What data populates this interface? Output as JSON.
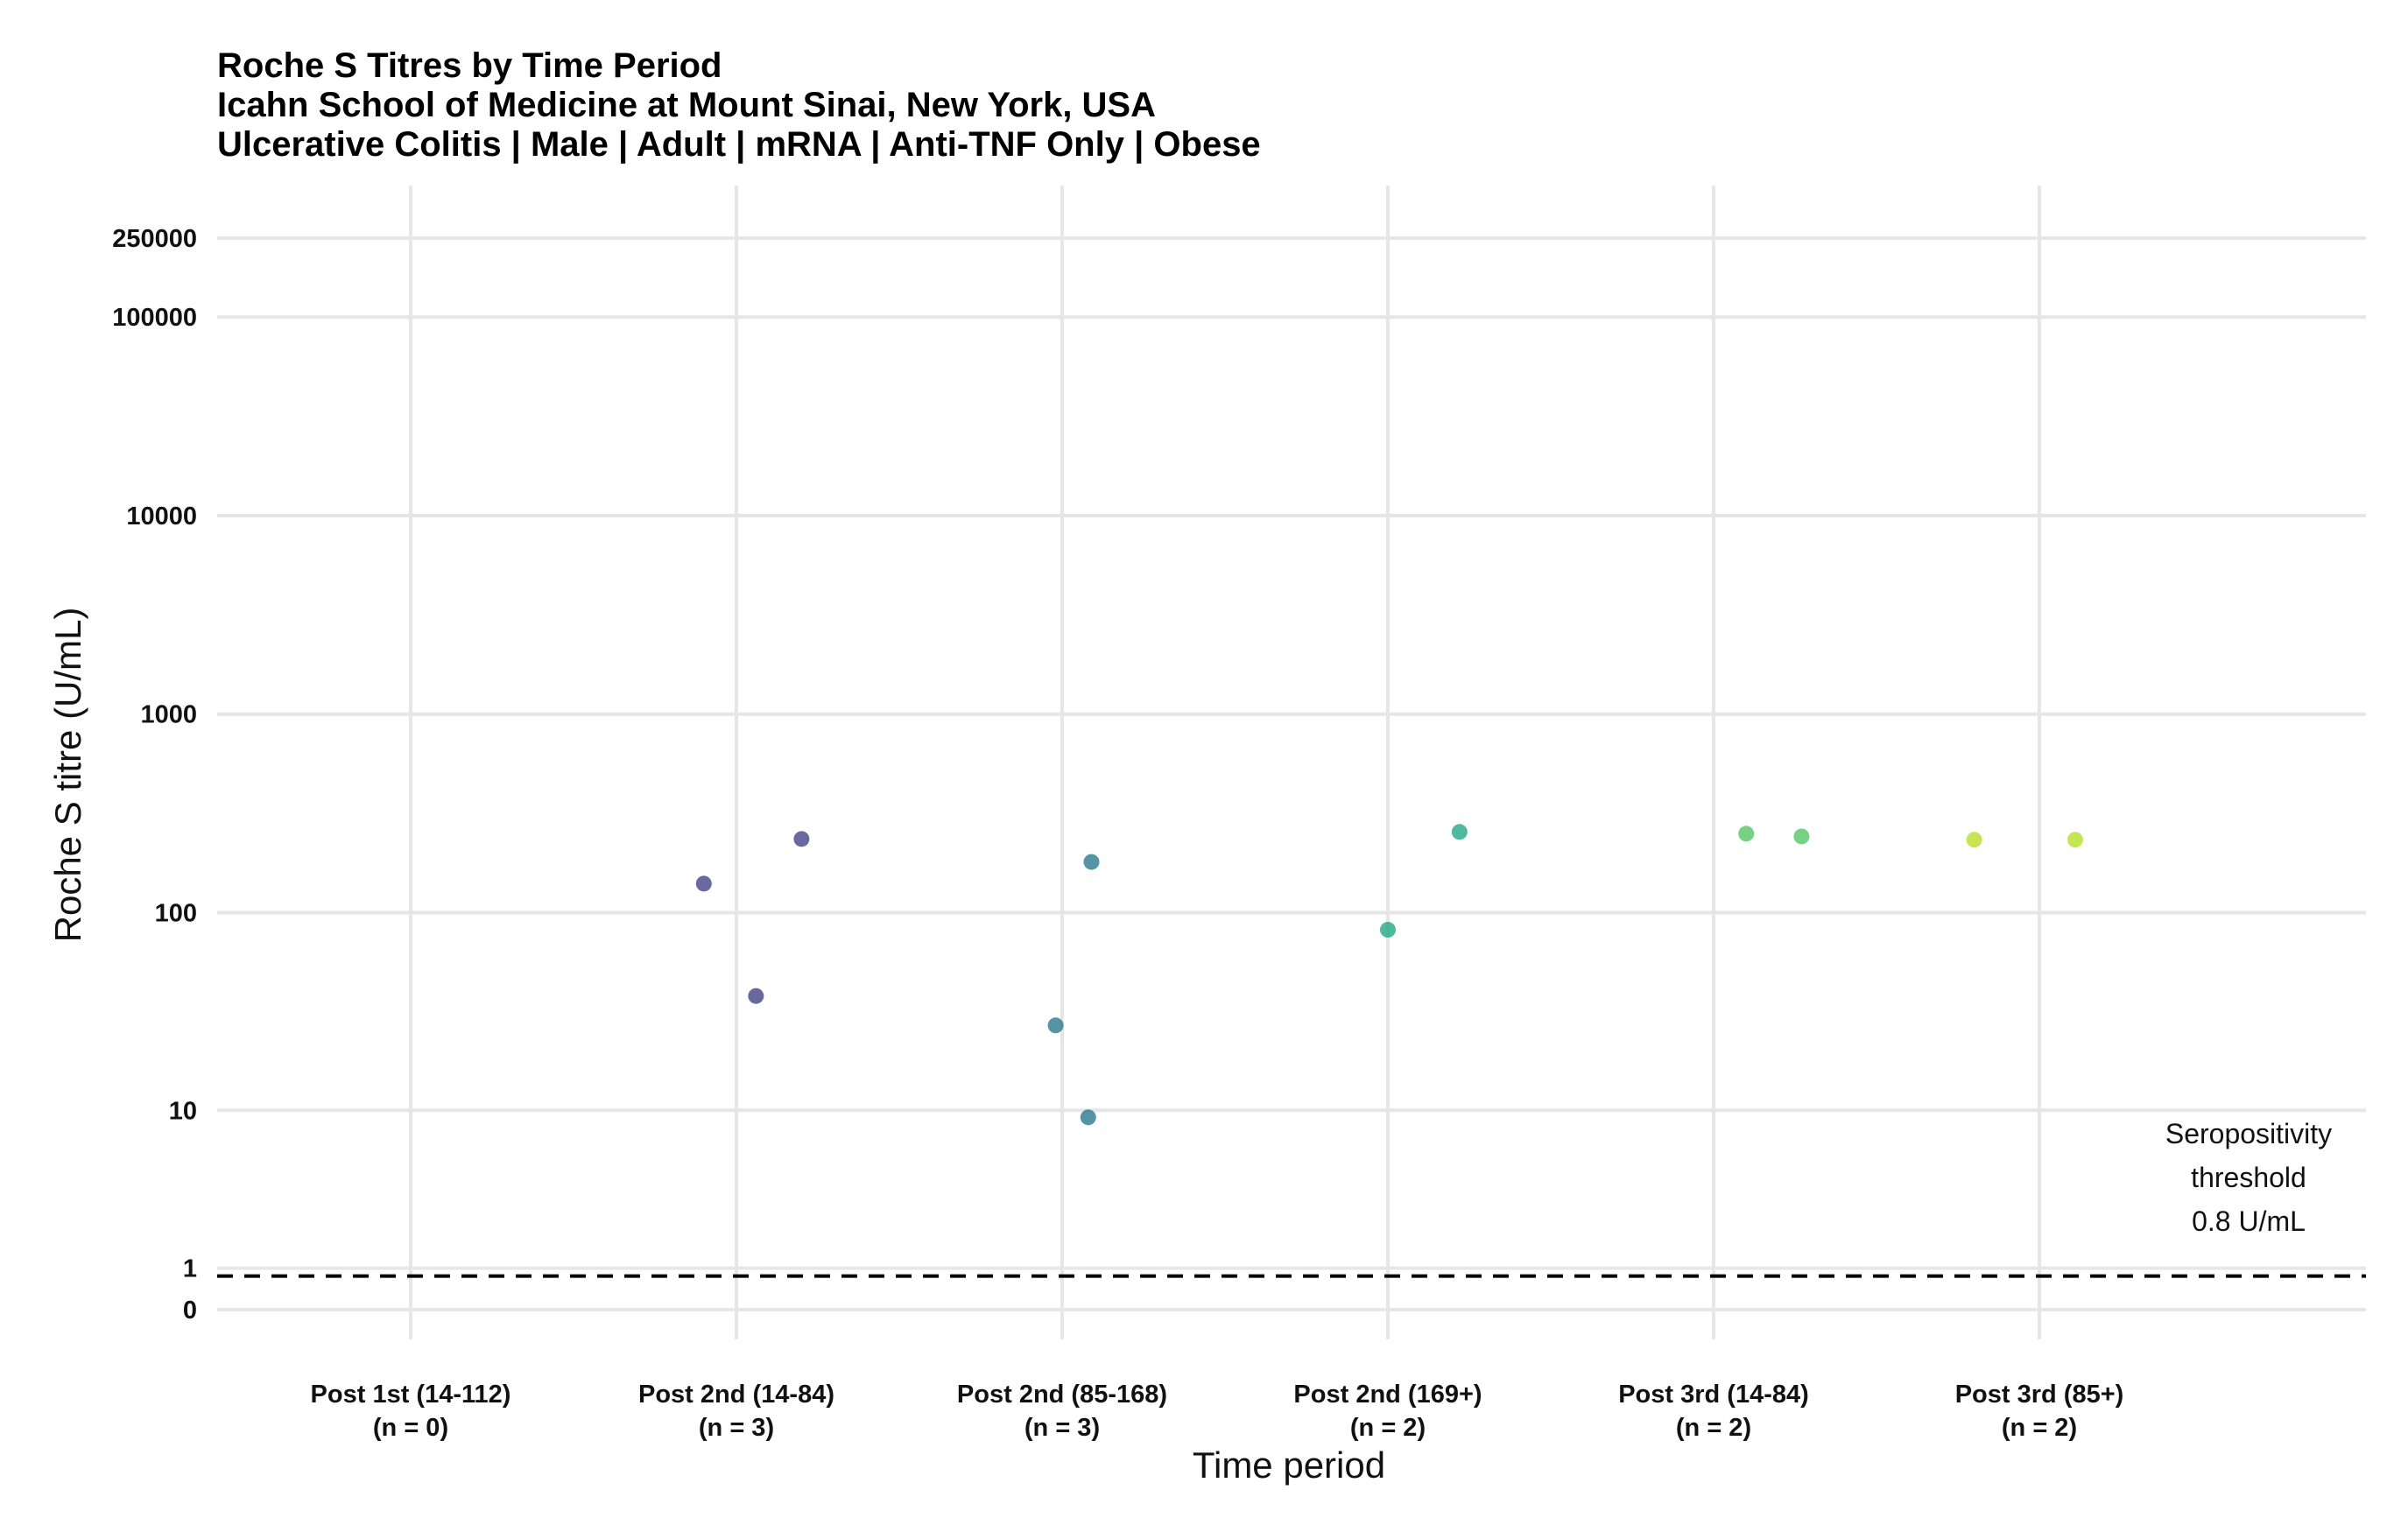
{
  "chart_data": {
    "type": "scatter",
    "title": "Roche S Titres by Time Period",
    "subtitle_lines": [
      "Icahn School of Medicine at Mount Sinai, New York, USA",
      "Ulcerative Colitis | Male | Adult | mRNA | Anti-TNF Only | Obese"
    ],
    "xlabel": "Time period",
    "ylabel": "Roche S titre (U/mL)",
    "y_scale": "pseudo-log",
    "yticks": [
      0,
      1,
      10,
      100,
      1000,
      10000,
      100000,
      250000
    ],
    "ytick_labels": [
      "0",
      "1",
      "10",
      "100",
      "1000",
      "10000",
      "100000",
      "250000"
    ],
    "categories": [
      {
        "label": "Post 1st (14-112)",
        "n_label": "(n = 0)",
        "color": "#440154"
      },
      {
        "label": "Post 2nd (14-84)",
        "n_label": "(n = 3)",
        "color": "#414487"
      },
      {
        "label": "Post 2nd (85-168)",
        "n_label": "(n = 3)",
        "color": "#2A788E"
      },
      {
        "label": "Post 2nd (169+)",
        "n_label": "(n = 2)",
        "color": "#22A884"
      },
      {
        "label": "Post 3rd (14-84)",
        "n_label": "(n = 2)",
        "color": "#55C667"
      },
      {
        "label": "Post 3rd (85+)",
        "n_label": "(n = 2)",
        "color": "#B8DE29"
      }
    ],
    "points": [
      {
        "category": 1,
        "jitter": -0.1,
        "y": 140
      },
      {
        "category": 1,
        "jitter": 0.06,
        "y": 38
      },
      {
        "category": 1,
        "jitter": 0.2,
        "y": 235
      },
      {
        "category": 2,
        "jitter": -0.02,
        "y": 27
      },
      {
        "category": 2,
        "jitter": 0.09,
        "y": 180
      },
      {
        "category": 2,
        "jitter": 0.08,
        "y": 9.2
      },
      {
        "category": 3,
        "jitter": 0.0,
        "y": 82
      },
      {
        "category": 3,
        "jitter": 0.22,
        "y": 255
      },
      {
        "category": 4,
        "jitter": 0.1,
        "y": 250
      },
      {
        "category": 4,
        "jitter": 0.27,
        "y": 242
      },
      {
        "category": 5,
        "jitter": -0.2,
        "y": 233
      },
      {
        "category": 5,
        "jitter": 0.11,
        "y": 233
      }
    ],
    "threshold": {
      "value": 0.8,
      "line_style": "dashed",
      "label_lines": [
        "Seropositivity",
        "threshold",
        "0.8 U/mL"
      ]
    },
    "grid": true,
    "legend": "none"
  }
}
